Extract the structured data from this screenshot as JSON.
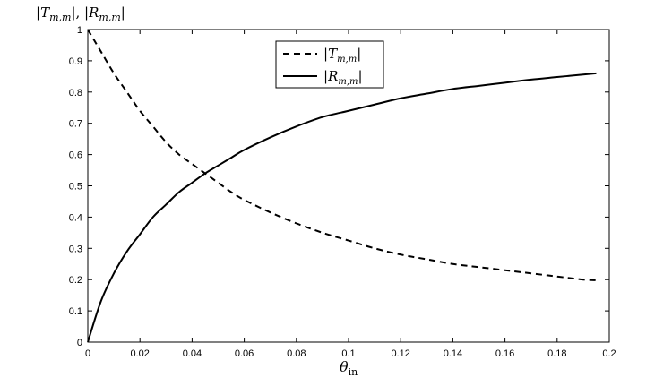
{
  "chart_data": {
    "type": "line",
    "xlabel": "θin",
    "ylabel": "|Tm,m|, |Rm,m|",
    "xlim": [
      0,
      0.2
    ],
    "ylim": [
      0,
      1
    ],
    "xticks": [
      "0",
      "0.02",
      "0.04",
      "0.06",
      "0.08",
      "0.1",
      "0.12",
      "0.14",
      "0.16",
      "0.18",
      "0.2"
    ],
    "yticks": [
      "0",
      "0.1",
      "0.2",
      "0.3",
      "0.4",
      "0.5",
      "0.6",
      "0.7",
      "0.8",
      "0.9",
      "1"
    ],
    "grid": false,
    "legend_position": "top-center",
    "series": [
      {
        "name": "|Tm,m|",
        "style": "dashed",
        "color": "#000000",
        "x": [
          0,
          0.005,
          0.01,
          0.015,
          0.02,
          0.025,
          0.03,
          0.035,
          0.04,
          0.045,
          0.05,
          0.055,
          0.06,
          0.07,
          0.08,
          0.09,
          0.1,
          0.11,
          0.12,
          0.13,
          0.14,
          0.15,
          0.16,
          0.17,
          0.18,
          0.19,
          0.195
        ],
        "y": [
          1.0,
          0.93,
          0.86,
          0.8,
          0.74,
          0.69,
          0.64,
          0.6,
          0.57,
          0.54,
          0.51,
          0.48,
          0.455,
          0.415,
          0.38,
          0.35,
          0.325,
          0.3,
          0.28,
          0.265,
          0.25,
          0.24,
          0.23,
          0.22,
          0.21,
          0.2,
          0.198
        ]
      },
      {
        "name": "|Rm,m|",
        "style": "solid",
        "color": "#000000",
        "x": [
          0,
          0.005,
          0.01,
          0.015,
          0.02,
          0.025,
          0.03,
          0.035,
          0.04,
          0.045,
          0.05,
          0.055,
          0.06,
          0.07,
          0.08,
          0.09,
          0.1,
          0.11,
          0.12,
          0.13,
          0.14,
          0.15,
          0.16,
          0.17,
          0.18,
          0.19,
          0.195
        ],
        "y": [
          0.0,
          0.13,
          0.22,
          0.29,
          0.345,
          0.4,
          0.44,
          0.48,
          0.51,
          0.54,
          0.565,
          0.59,
          0.615,
          0.655,
          0.69,
          0.72,
          0.74,
          0.76,
          0.78,
          0.795,
          0.81,
          0.82,
          0.83,
          0.84,
          0.848,
          0.856,
          0.86
        ]
      }
    ]
  }
}
